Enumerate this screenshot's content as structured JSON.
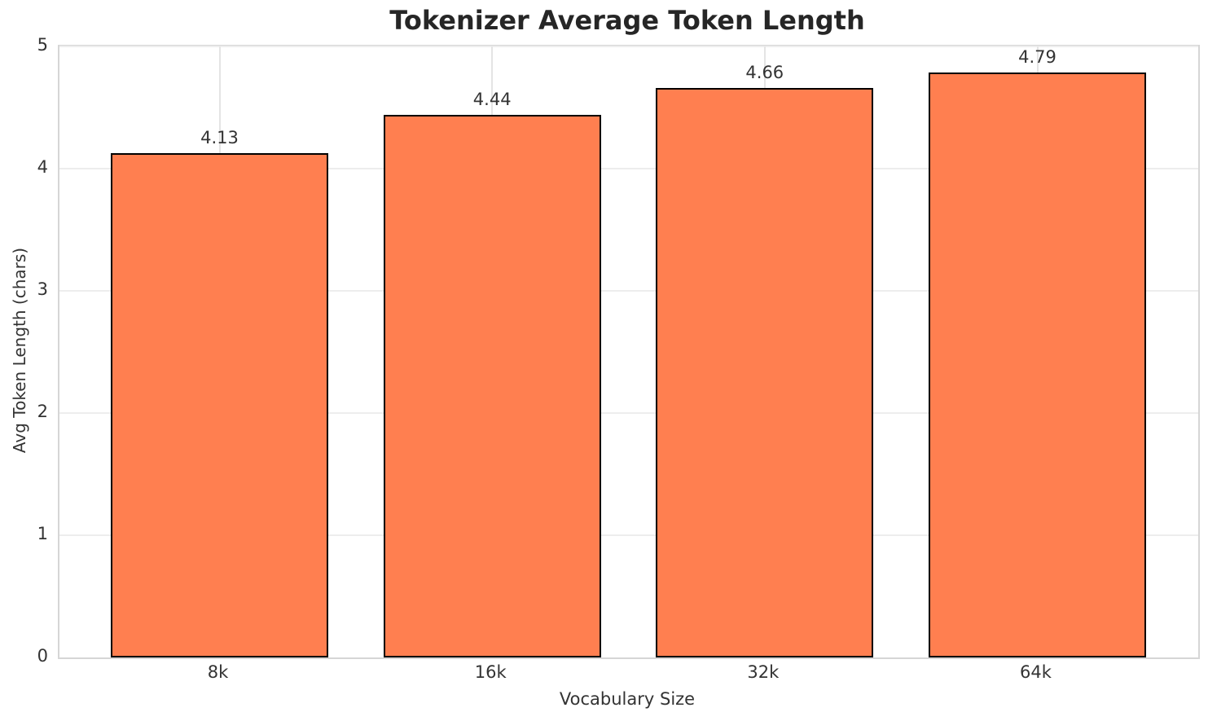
{
  "chart_data": {
    "type": "bar",
    "title": "Tokenizer Average Token Length",
    "xlabel": "Vocabulary Size",
    "ylabel": "Avg Token Length (chars)",
    "categories": [
      "8k",
      "16k",
      "32k",
      "64k"
    ],
    "values": [
      4.13,
      4.44,
      4.66,
      4.79
    ],
    "value_labels": [
      "4.13",
      "4.44",
      "4.66",
      "4.79"
    ],
    "ylim": [
      0,
      5
    ],
    "yticks": [
      0,
      1,
      2,
      3,
      4,
      5
    ],
    "ytick_labels": [
      "0",
      "1",
      "2",
      "3",
      "4",
      "5"
    ],
    "grid": true,
    "legend": "none",
    "bar_color": "#FF7F50",
    "bar_edge_color": "#000000",
    "background_color": "#ffffff",
    "grid_color": "#ededed",
    "spine_color": "#d6d6d6",
    "text_color": "#333333",
    "title_color": "#262626"
  }
}
